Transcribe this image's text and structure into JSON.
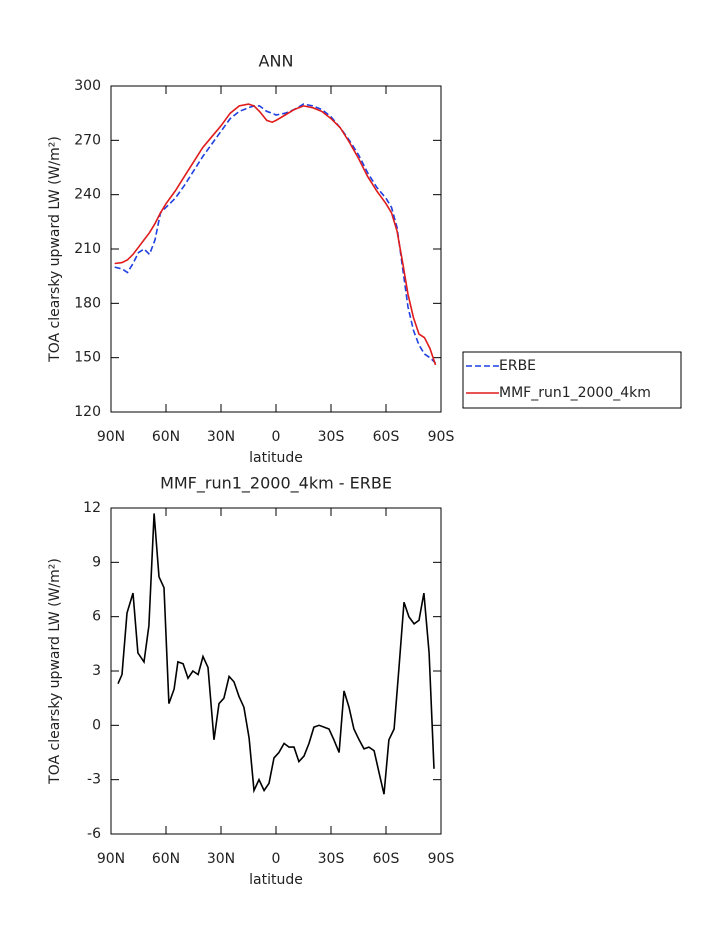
{
  "chart_data": [
    {
      "type": "line",
      "title": "ANN",
      "x_label": "latitude",
      "y_label": "TOA clearsky upward LW (W/m²)",
      "x": [
        88,
        84,
        81,
        78,
        75,
        72,
        69,
        66,
        63,
        60,
        55,
        50,
        45,
        40,
        35,
        30,
        25,
        20,
        15,
        12,
        9,
        5,
        2,
        0,
        -5,
        -10,
        -15,
        -20,
        -25,
        -30,
        -35,
        -40,
        -45,
        -50,
        -55,
        -60,
        -63,
        -66,
        -69,
        -72,
        -75,
        -78,
        -81,
        -84,
        -87
      ],
      "series": [
        {
          "name": "ERBE",
          "color": "#1f3fe0",
          "dash": true,
          "values": [
            200,
            199,
            197,
            202,
            208,
            210,
            207,
            215,
            230,
            233,
            238,
            245,
            253,
            261,
            268,
            275,
            282,
            286,
            288,
            289,
            289,
            286,
            285,
            284,
            285,
            287,
            290,
            289,
            287,
            283,
            277,
            270,
            262,
            252,
            244,
            238,
            233,
            222,
            200,
            178,
            165,
            157,
            152,
            150,
            147
          ]
        },
        {
          "name": "MMF_run1_2000_4km",
          "color": "#e01b1b",
          "dash": false,
          "values": [
            202,
            202.5,
            204,
            207,
            211,
            215,
            219,
            224,
            230,
            235,
            242,
            250,
            258,
            266,
            272,
            278,
            285,
            289,
            290,
            289,
            286,
            281,
            280,
            281,
            284,
            287,
            289,
            288,
            286,
            282,
            277,
            269,
            260,
            250,
            242,
            235,
            230,
            220,
            203,
            185,
            172,
            163,
            161,
            155,
            146
          ]
        }
      ],
      "xlim": [
        90,
        -90
      ],
      "xticks": [
        {
          "value": 90,
          "label": "90N"
        },
        {
          "value": 60,
          "label": "60N"
        },
        {
          "value": 30,
          "label": "30N"
        },
        0,
        {
          "value": -30,
          "label": "30S"
        },
        {
          "value": -60,
          "label": "60S"
        },
        {
          "value": -90,
          "label": "90S"
        }
      ],
      "ylim": [
        120,
        300
      ],
      "yticks": [
        120,
        150,
        180,
        210,
        240,
        270,
        300
      ],
      "legend": "right"
    },
    {
      "type": "line",
      "title": "MMF_run1_2000_4km - ERBE",
      "x_label": "latitude",
      "y_label": "TOA clearsky upward LW (W/m²)",
      "x": [
        86.2,
        84.0,
        81.3,
        78.0,
        75.3,
        72.0,
        69.3,
        66.5,
        63.8,
        61.1,
        58.4,
        55.6,
        53.5,
        50.7,
        48.0,
        45.3,
        42.5,
        39.8,
        37.1,
        33.8,
        31.1,
        28.4,
        25.6,
        22.9,
        20.2,
        17.5,
        14.7,
        12.0,
        9.3,
        6.5,
        3.8,
        1.1,
        -1.6,
        -4.4,
        -7.1,
        -9.8,
        -12.5,
        -15.3,
        -18.0,
        -20.7,
        -23.5,
        -26.2,
        -28.9,
        -31.6,
        -34.4,
        -37.1,
        -39.8,
        -42.5,
        -45.3,
        -48.0,
        -50.7,
        -53.5,
        -56.2,
        -58.9,
        -61.6,
        -64.4,
        -67.1,
        -69.8,
        -72.5,
        -75.3,
        -78.0,
        -80.7,
        -83.5,
        -86.2
      ],
      "series": [
        {
          "color": "#000000",
          "dash": false,
          "values": [
            2.3,
            2.8,
            6.2,
            7.3,
            4.0,
            3.5,
            5.5,
            11.7,
            8.2,
            7.6,
            1.2,
            2.0,
            3.5,
            3.4,
            2.6,
            3.0,
            2.8,
            3.8,
            3.2,
            -0.8,
            1.2,
            1.5,
            2.7,
            2.4,
            1.6,
            1.0,
            -0.7,
            -3.6,
            -3.0,
            -3.6,
            -3.2,
            -1.8,
            -1.5,
            -1.0,
            -1.2,
            -1.2,
            -2.0,
            -1.7,
            -1.0,
            -0.1,
            0.0,
            -0.1,
            -0.2,
            -0.8,
            -1.5,
            1.9,
            1.0,
            -0.2,
            -0.8,
            -1.3,
            -1.2,
            -1.4,
            -2.6,
            -3.8,
            -0.8,
            -0.2,
            3.2,
            6.8,
            6.0,
            5.6,
            5.8,
            7.3,
            4.0,
            -2.4
          ]
        }
      ],
      "xlim": [
        90,
        -90
      ],
      "xticks": [
        {
          "value": 90,
          "label": "90N"
        },
        {
          "value": 60,
          "label": "60N"
        },
        {
          "value": 30,
          "label": "30N"
        },
        0,
        {
          "value": -30,
          "label": "30S"
        },
        {
          "value": -60,
          "label": "60S"
        },
        {
          "value": -90,
          "label": "90S"
        }
      ],
      "ylim": [
        -6,
        12
      ],
      "yticks": [
        -6,
        -3,
        0,
        3,
        6,
        9,
        12
      ]
    }
  ]
}
